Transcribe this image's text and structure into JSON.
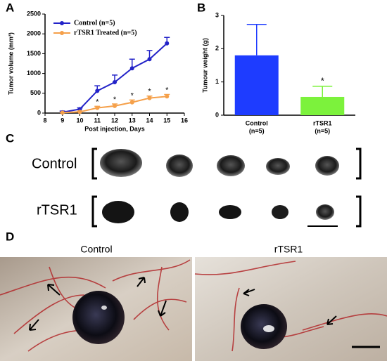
{
  "chart_data": [
    {
      "type": "line",
      "x": [
        9,
        10,
        11,
        12,
        13,
        14,
        15
      ],
      "xlim": [
        8,
        16
      ],
      "xticks": [
        8,
        9,
        10,
        11,
        12,
        13,
        14,
        15,
        16
      ],
      "ylim": [
        0,
        2500
      ],
      "yticks": [
        0,
        500,
        1000,
        1500,
        2000,
        2500
      ],
      "x_label": "Post injection, Days",
      "y_label": "Tumor volume (mm³)",
      "legend": "top-left",
      "series": [
        {
          "name": "Control (n=5)",
          "color": "#2323c8",
          "values": [
            20,
            100,
            560,
            780,
            1130,
            1360,
            1760
          ],
          "errors": [
            30,
            30,
            130,
            180,
            230,
            220,
            150
          ]
        },
        {
          "name": "rTSR1 Treated (n=5)",
          "color": "#f5a04a",
          "values": [
            10,
            30,
            130,
            180,
            270,
            380,
            420
          ],
          "errors": [
            10,
            20,
            40,
            50,
            60,
            50,
            50
          ]
        }
      ],
      "annotations": [
        {
          "text": "*",
          "x": 11
        },
        {
          "text": "*",
          "x": 12
        },
        {
          "text": "*",
          "x": 13
        },
        {
          "text": "*",
          "x": 14
        },
        {
          "text": "*",
          "x": 15
        }
      ]
    },
    {
      "type": "bar",
      "categories": [
        "Control",
        "rTSR1"
      ],
      "category_sublabels": [
        "(n=5)",
        "(n=5)"
      ],
      "values": [
        1.8,
        0.55
      ],
      "errors": [
        0.93,
        0.32
      ],
      "colors": [
        "#1e3cff",
        "#7cf23c"
      ],
      "ylim": [
        0,
        3
      ],
      "yticks": [
        0,
        1,
        2,
        3
      ],
      "y_label": "Tumour weight (g)",
      "annotations": [
        {
          "text": "*",
          "category": "rTSR1"
        }
      ]
    }
  ],
  "figure": {
    "panel_labels": [
      "A",
      "B",
      "C",
      "D"
    ],
    "c_rows": [
      "Control",
      "rTSR1"
    ],
    "d_captions": [
      "Control",
      "rTSR1"
    ]
  }
}
